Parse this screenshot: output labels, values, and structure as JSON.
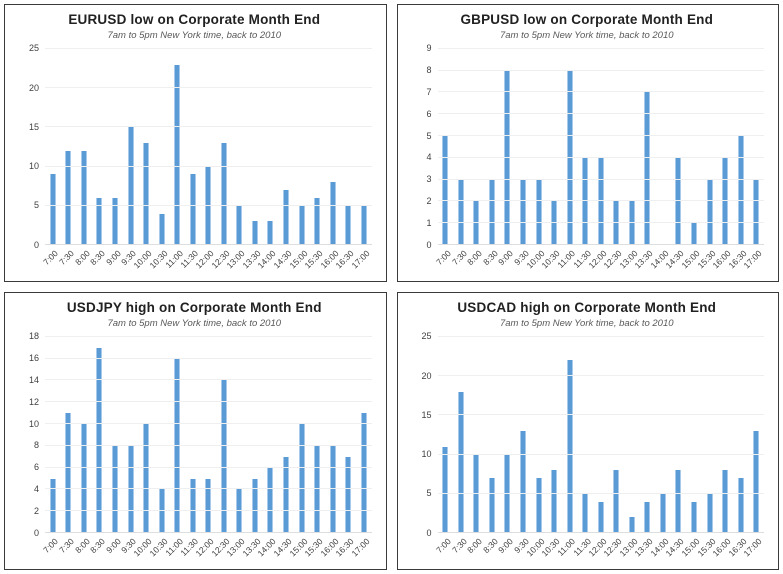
{
  "page": {
    "background": "#ffffff"
  },
  "colors": {
    "bar_fill": "#5b9bd5",
    "bar_edge": "#a6c9ec",
    "gridline": "#efefef",
    "baseline": "#dedede",
    "axis_text": "#404040",
    "title_text": "#212121",
    "subtitle_text": "#595959",
    "panel_border": "#3a3a3a"
  },
  "chart_data": [
    {
      "type": "bar",
      "title": "EURUSD low on Corporate Month End",
      "subtitle": "7am to 5pm New York time, back to 2010",
      "xlabel": "",
      "ylabel": "",
      "ylim": [
        0,
        25
      ],
      "ytick_step": 5,
      "grid": true,
      "legend": false,
      "categories": [
        "7:00",
        "7:30",
        "8:00",
        "8:30",
        "9:00",
        "9:30",
        "10:00",
        "10:30",
        "11:00",
        "11:30",
        "12:00",
        "12:30",
        "13:00",
        "13:30",
        "14:00",
        "14:30",
        "15:00",
        "15:30",
        "16:00",
        "16:30",
        "17:00"
      ],
      "values": [
        9,
        12,
        12,
        6,
        6,
        15,
        13,
        4,
        23,
        9,
        10,
        13,
        5,
        3,
        3,
        7,
        5,
        6,
        8,
        5,
        5
      ]
    },
    {
      "type": "bar",
      "title": "GBPUSD low on Corporate Month End",
      "subtitle": "7am to 5pm New York time, back to 2010",
      "xlabel": "",
      "ylabel": "",
      "ylim": [
        0,
        9
      ],
      "ytick_step": 1,
      "grid": true,
      "legend": false,
      "categories": [
        "7:00",
        "7:30",
        "8:00",
        "8:30",
        "9:00",
        "9:30",
        "10:00",
        "10:30",
        "11:00",
        "11:30",
        "12:00",
        "12:30",
        "13:00",
        "13:30",
        "14:00",
        "14:30",
        "15:00",
        "15:30",
        "16:00",
        "16:30",
        "17:00"
      ],
      "values": [
        5,
        3,
        2,
        3,
        8,
        3,
        3,
        2,
        8,
        4,
        4,
        2,
        2,
        7,
        0,
        4,
        1,
        3,
        4,
        5,
        3
      ]
    },
    {
      "type": "bar",
      "title": "USDJPY high on Corporate Month End",
      "subtitle": "7am to 5pm New York time, back to 2010",
      "xlabel": "",
      "ylabel": "",
      "ylim": [
        0,
        18
      ],
      "ytick_step": 2,
      "grid": true,
      "legend": false,
      "categories": [
        "7:00",
        "7:30",
        "8:00",
        "8:30",
        "9:00",
        "9:30",
        "10:00",
        "10:30",
        "11:00",
        "11:30",
        "12:00",
        "12:30",
        "13:00",
        "13:30",
        "14:00",
        "14:30",
        "15:00",
        "15:30",
        "16:00",
        "16:30",
        "17:00"
      ],
      "values": [
        5,
        11,
        10,
        17,
        8,
        8,
        10,
        4,
        16,
        5,
        5,
        14,
        4,
        5,
        6,
        7,
        10,
        8,
        8,
        7,
        11
      ]
    },
    {
      "type": "bar",
      "title": "USDCAD high on Corporate Month End",
      "subtitle": "7am to 5pm New York time, back to 2010",
      "xlabel": "",
      "ylabel": "",
      "ylim": [
        0,
        25
      ],
      "ytick_step": 5,
      "grid": true,
      "legend": false,
      "categories": [
        "7:00",
        "7:30",
        "8:00",
        "8:30",
        "9:00",
        "9:30",
        "10:00",
        "10:30",
        "11:00",
        "11:30",
        "12:00",
        "12:30",
        "13:00",
        "13:30",
        "14:00",
        "14:30",
        "15:00",
        "15:30",
        "16:00",
        "16:30",
        "17:00"
      ],
      "values": [
        11,
        18,
        10,
        7,
        10,
        13,
        7,
        8,
        22,
        5,
        4,
        8,
        2,
        4,
        5,
        8,
        4,
        5,
        8,
        7,
        13
      ]
    }
  ]
}
